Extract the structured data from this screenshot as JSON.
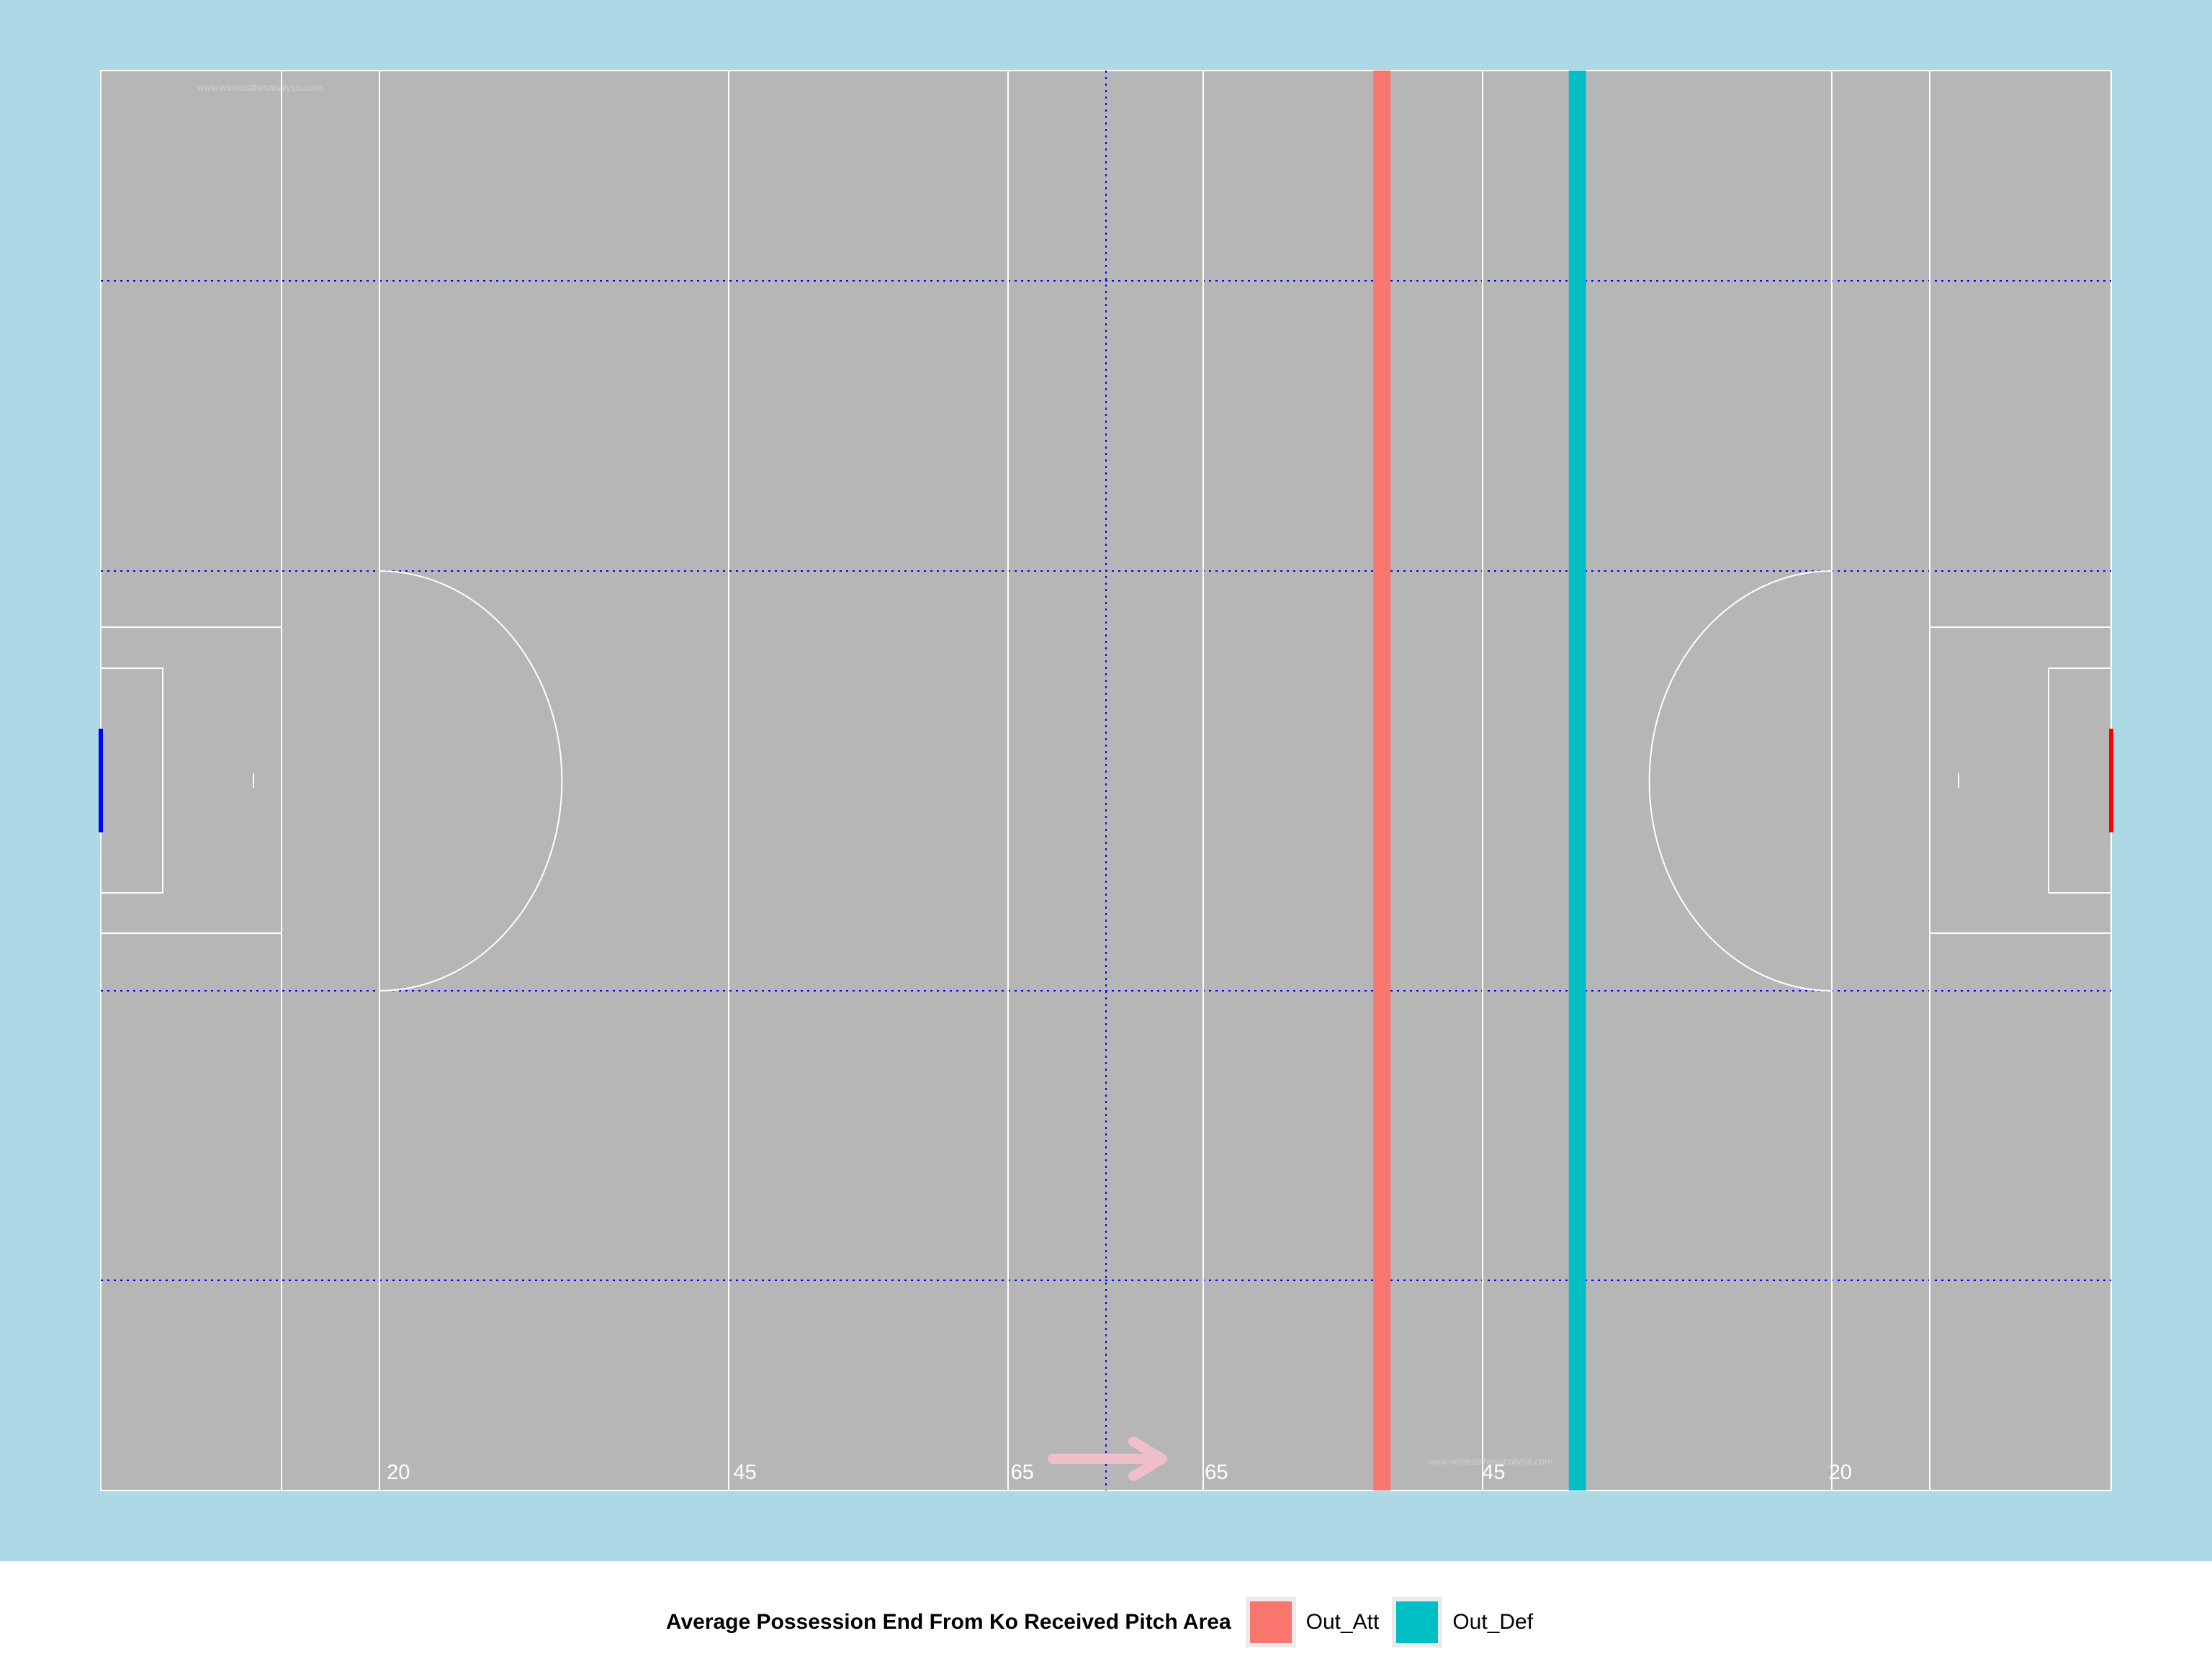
{
  "chart_data": {
    "type": "line",
    "xlabel": "",
    "ylabel": "",
    "grid": false,
    "legend_position": "bottom",
    "pitch": {
      "length": 145,
      "width": 88,
      "line_markers": [
        {
          "label": "20",
          "x": 20
        },
        {
          "label": "45",
          "x": 45
        },
        {
          "label": "65",
          "x": 65
        },
        {
          "label": "65",
          "x": 79
        },
        {
          "label": "45",
          "x": 99
        },
        {
          "label": "20",
          "x": 124
        }
      ],
      "watermark": "www.witnessthesanalysis.com"
    },
    "legend": {
      "title": "Average Possession End From Ko Received Pitch Area"
    },
    "series": [
      {
        "name": "Out_Att",
        "x": 92.4,
        "color": "#f8766d"
      },
      {
        "name": "Out_Def",
        "x": 106.5,
        "color": "#00bfc4"
      }
    ]
  }
}
